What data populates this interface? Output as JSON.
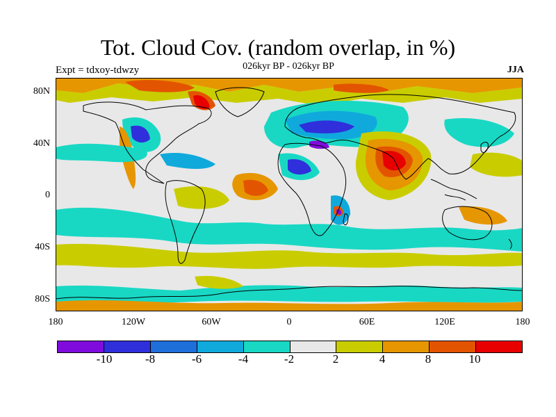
{
  "header": {
    "title": "Tot. Cloud Cov. (random overlap, in %)",
    "subtitle": "026kyr BP - 026kyr BP",
    "experiment": "Expt = tdxoy-tdwzy",
    "season": "JJA"
  },
  "axes": {
    "lat_labels": [
      "80N",
      "40N",
      "0",
      "40S",
      "80S"
    ],
    "lon_labels": [
      "180",
      "120W",
      "60W",
      "0",
      "60E",
      "120E",
      "180"
    ]
  },
  "colorbar": {
    "labels": [
      "-10",
      "-8",
      "-6",
      "-4",
      "-2",
      "2",
      "4",
      "8",
      "10"
    ],
    "colors": [
      "#7f0cdc",
      "#2f2fdb",
      "#1f6fdb",
      "#10a9dc",
      "#18d8c4",
      "#e8e8e8",
      "#c9cd00",
      "#e69600",
      "#e35400",
      "#e80000"
    ]
  },
  "map": {
    "type": "filled-contour anomaly map",
    "background_color": "#e8e8e8",
    "coastline_color": "#000000"
  }
}
